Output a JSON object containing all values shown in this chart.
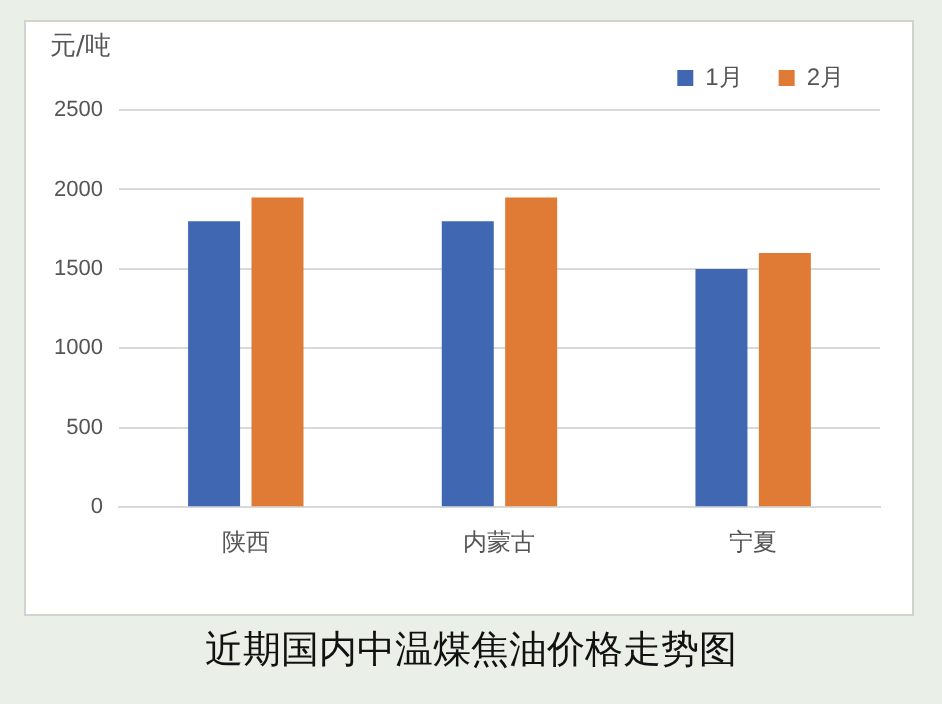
{
  "chart_data": {
    "type": "bar",
    "title": "近期国内中温煤焦油价格走势图",
    "ylabel": "元/吨",
    "categories": [
      "陕西",
      "内蒙古",
      "宁夏"
    ],
    "series": [
      {
        "name": "1月",
        "color": "#4068b2",
        "values": [
          1800,
          1800,
          1500
        ]
      },
      {
        "name": "2月",
        "color": "#e07b35",
        "values": [
          1950,
          1950,
          1600
        ]
      }
    ],
    "ylim": [
      0,
      2500
    ],
    "yticks": [
      0,
      500,
      1000,
      1500,
      2000,
      2500
    ],
    "grid": "y",
    "legend": "top right"
  }
}
